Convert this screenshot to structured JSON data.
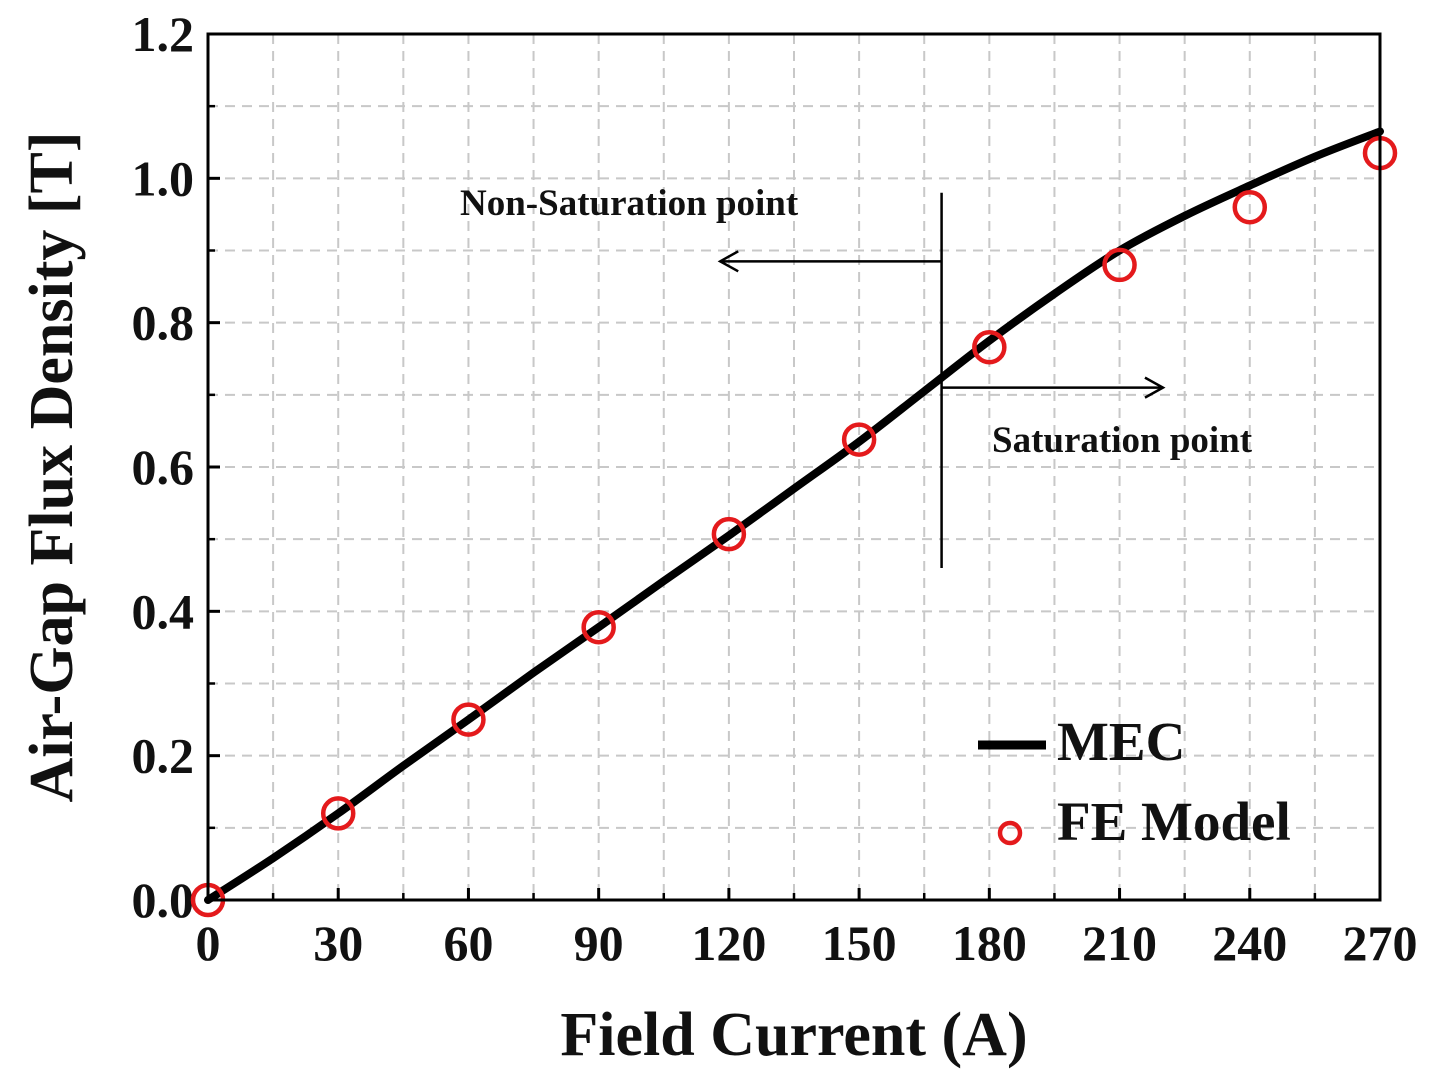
{
  "chart_data": {
    "type": "line",
    "xlabel": "Field Current (A)",
    "ylabel": "Air-Gap Flux Density [T]",
    "xlim": [
      0,
      270
    ],
    "ylim": [
      0,
      1.2
    ],
    "x_ticks": [
      "0",
      "30",
      "60",
      "90",
      "120",
      "150",
      "180",
      "210",
      "240",
      "270"
    ],
    "y_ticks": [
      "0.0",
      "0.2",
      "0.4",
      "0.6",
      "0.8",
      "1.0",
      "1.2"
    ],
    "grid": true,
    "series": [
      {
        "name": "MEC",
        "style": "line",
        "color": "#000000",
        "x": [
          0,
          15,
          30,
          45,
          60,
          75,
          90,
          105,
          120,
          135,
          150,
          165,
          180,
          195,
          210,
          225,
          240,
          255,
          270
        ],
        "y": [
          0.0,
          0.058,
          0.12,
          0.186,
          0.25,
          0.315,
          0.378,
          0.442,
          0.505,
          0.57,
          0.635,
          0.705,
          0.775,
          0.84,
          0.9,
          0.948,
          0.99,
          1.03,
          1.065
        ]
      },
      {
        "name": "FE Model",
        "style": "marker-circle-open",
        "color": "#e41a1c",
        "x": [
          0,
          30,
          60,
          90,
          120,
          150,
          180,
          210,
          240,
          270
        ],
        "y": [
          0.0,
          0.12,
          0.25,
          0.378,
          0.507,
          0.638,
          0.766,
          0.88,
          0.96,
          1.035
        ]
      }
    ],
    "annotations": {
      "divider_x": 169,
      "divider_y_range": [
        0.46,
        0.98
      ],
      "non_saturation": {
        "text": "Non-Saturation point",
        "arrow_from_x": 169,
        "arrow_to_x": 118,
        "arrow_y": 0.885
      },
      "saturation": {
        "text": "Saturation point",
        "arrow_from_x": 169,
        "arrow_to_x": 220,
        "arrow_y": 0.71
      }
    },
    "legend": {
      "position": "bottom-right",
      "entries": [
        "MEC",
        "FE Model"
      ]
    }
  }
}
